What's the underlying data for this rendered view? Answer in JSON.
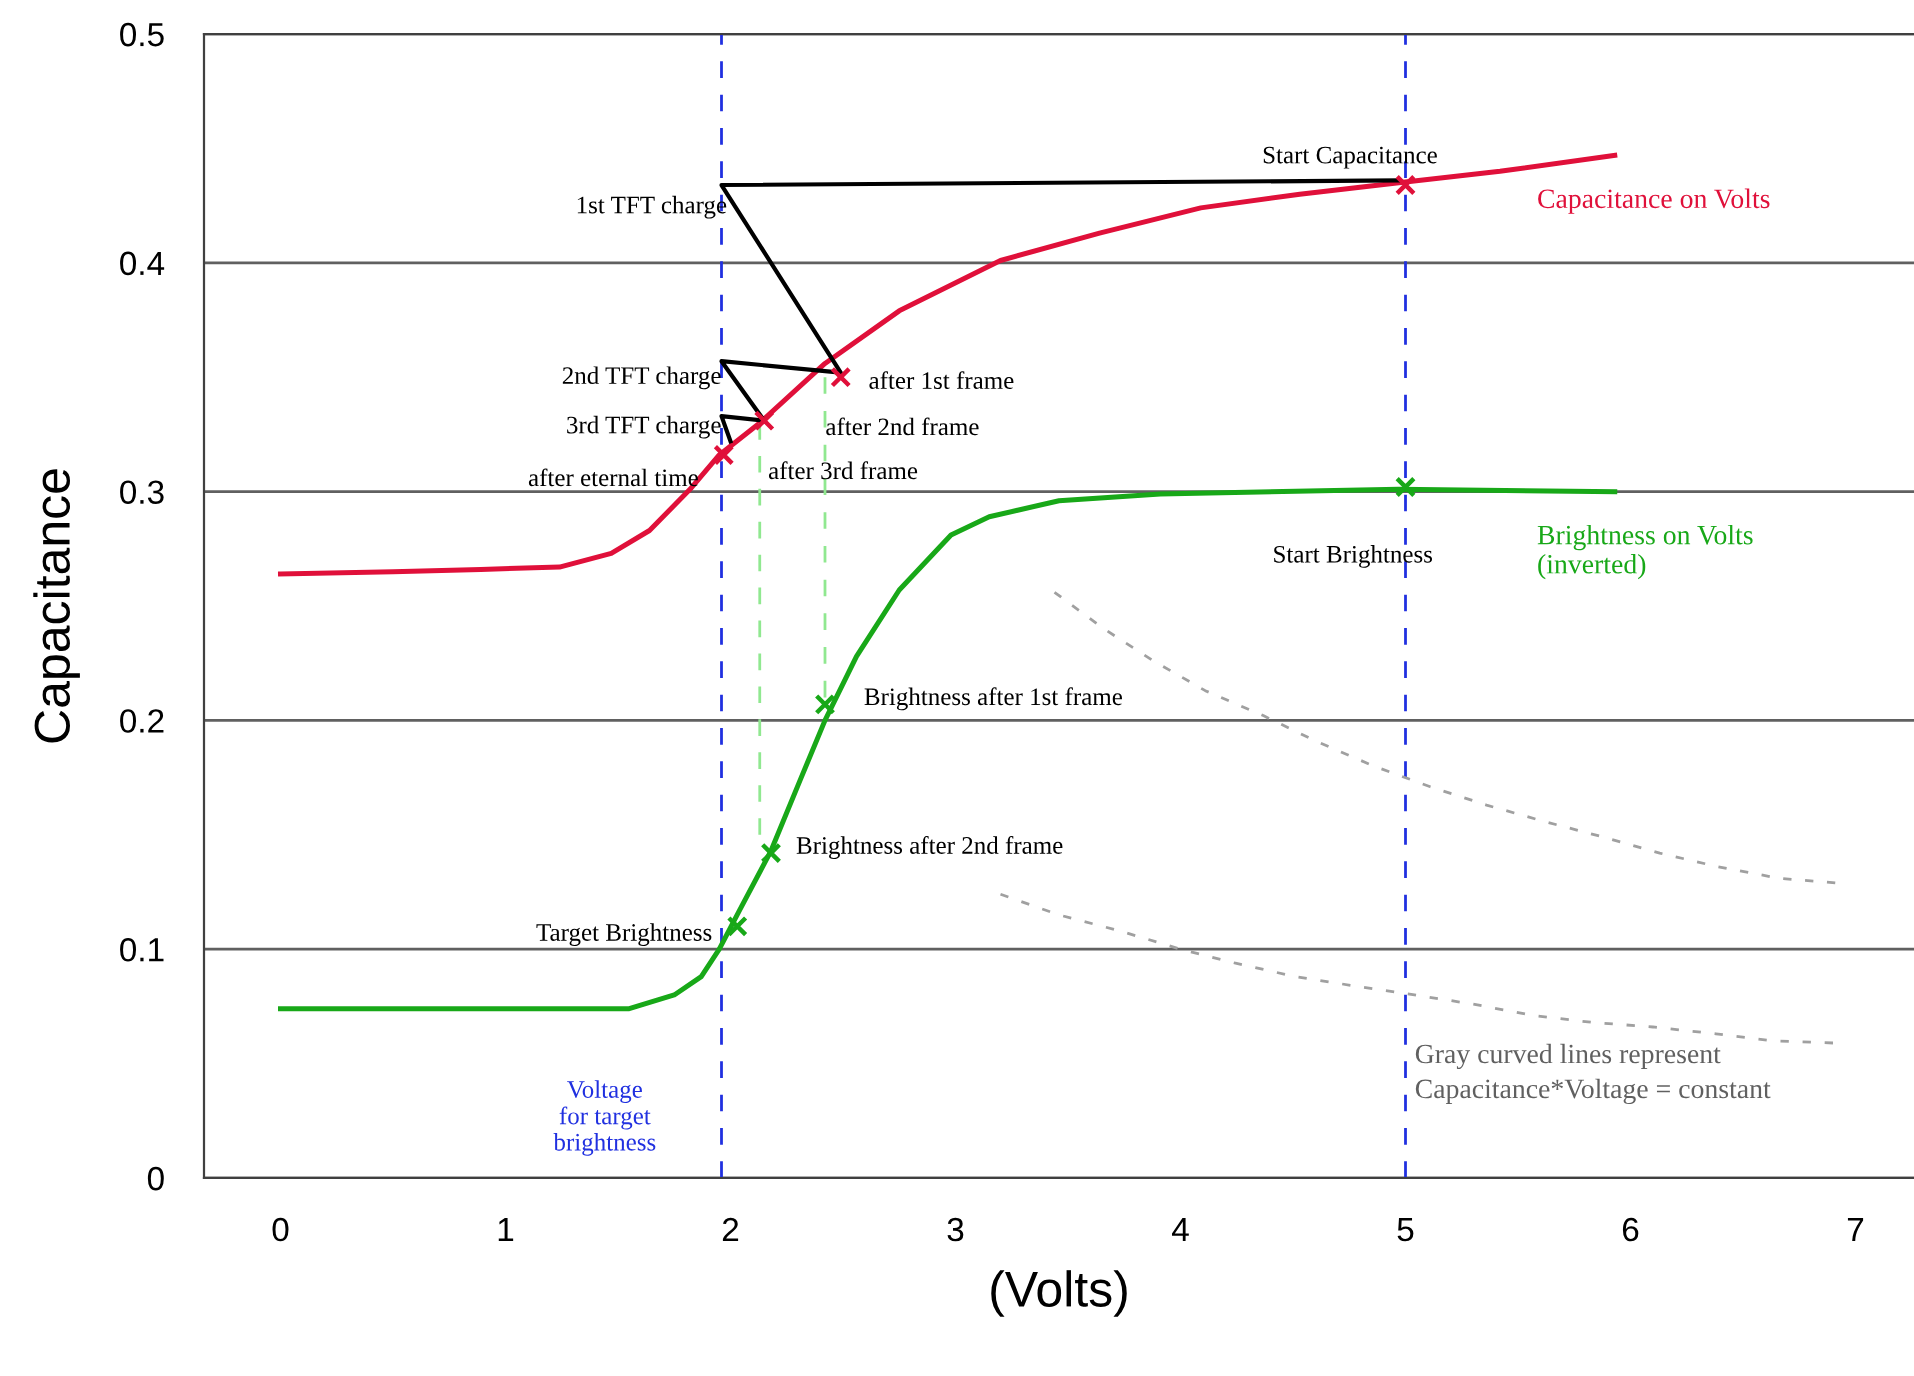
{
  "chart_data": {
    "type": "line",
    "xlabel": "(Volts)",
    "ylabel": "Capacitance",
    "xlim": [
      -0.34,
      7.26
    ],
    "ylim": [
      0,
      0.5
    ],
    "xticks": [
      0,
      1,
      2,
      3,
      4,
      5,
      6,
      7
    ],
    "yticks": [
      0,
      0.1,
      0.2,
      0.3,
      0.4,
      0.5
    ],
    "grid": "y",
    "series": [
      {
        "name": "Capacitance on Volts",
        "color": "#e0103a",
        "x": [
          0,
          0.5,
          0.89,
          1.24,
          1.47,
          1.64,
          1.82,
          1.95,
          2.13,
          2.42,
          2.75,
          3.2,
          3.64,
          4.09,
          4.53,
          4.97,
          5.42,
          5.93
        ],
        "values": [
          0.264,
          0.265,
          0.266,
          0.267,
          0.273,
          0.283,
          0.301,
          0.316,
          0.33,
          0.356,
          0.379,
          0.401,
          0.413,
          0.424,
          0.43,
          0.435,
          0.44,
          0.447
        ]
      },
      {
        "name": "Brightness on Volts\n(inverted)",
        "color": "#18a818",
        "x": [
          0,
          1.55,
          1.75,
          1.87,
          1.95,
          2.04,
          2.18,
          2.31,
          2.42,
          2.56,
          2.75,
          2.98,
          3.15,
          3.46,
          3.91,
          4.97,
          5.93
        ],
        "values": [
          0.074,
          0.074,
          0.08,
          0.088,
          0.1,
          0.117,
          0.143,
          0.174,
          0.2,
          0.228,
          0.257,
          0.281,
          0.289,
          0.296,
          0.299,
          0.301,
          0.3
        ]
      },
      {
        "type": "scatter",
        "marker": "cross",
        "color": "#e0103a",
        "x": [
          5.0,
          2.49,
          2.15,
          1.97
        ],
        "values": [
          0.434,
          0.35,
          0.331,
          0.316
        ]
      },
      {
        "type": "scatter",
        "marker": "cross",
        "color": "#18a818",
        "x": [
          5.0,
          2.42,
          2.18,
          2.03
        ],
        "values": [
          0.302,
          0.207,
          0.142,
          0.11
        ]
      },
      {
        "color": "#000000",
        "x": [
          4.97,
          1.96,
          2.49,
          1.96,
          2.15,
          1.96,
          2.0
        ],
        "values": [
          0.436,
          0.434,
          0.352,
          0.357,
          0.331,
          0.333,
          0.322
        ]
      },
      {
        "line_style": "dashed",
        "color": "#90e890",
        "x": [
          2.13,
          2.13
        ],
        "values": [
          0.33,
          0.15
        ]
      },
      {
        "line_style": "dashed",
        "color": "#90e890",
        "x": [
          2.42,
          2.42
        ],
        "values": [
          0.35,
          0.21
        ]
      },
      {
        "line_style": "dotted",
        "color": "#a0a0a0",
        "x": [
          3.2,
          3.46,
          3.73,
          4.0,
          4.24,
          4.51,
          4.77,
          5.04,
          5.3,
          5.57,
          5.83,
          6.1,
          6.38,
          6.63,
          6.9
        ],
        "values": [
          0.124,
          0.115,
          0.108,
          0.1,
          0.094,
          0.088,
          0.084,
          0.08,
          0.076,
          0.071,
          0.068,
          0.066,
          0.063,
          0.06,
          0.059
        ]
      },
      {
        "line_style": "dotted",
        "color": "#a0a0a0",
        "x": [
          3.44,
          3.66,
          3.88,
          4.11,
          4.37,
          4.6,
          4.86,
          5.11,
          5.36,
          5.61,
          5.88,
          6.13,
          6.39,
          6.66,
          6.91
        ],
        "values": [
          0.256,
          0.24,
          0.226,
          0.213,
          0.202,
          0.191,
          0.18,
          0.171,
          0.163,
          0.156,
          0.149,
          0.142,
          0.136,
          0.131,
          0.129
        ]
      }
    ],
    "ref_lines": [
      {
        "axis": "x",
        "value": 1.96,
        "label": "Voltage\nfor target\nbrightness",
        "color": "#2030e0",
        "line_style": "dashed"
      },
      {
        "axis": "x",
        "value": 5.0,
        "color": "#2030e0",
        "line_style": "dashed"
      }
    ],
    "annotations": [
      {
        "text": "Start Capacitance",
        "x": 5.0,
        "y": 0.434
      },
      {
        "text": "1st TFT charge",
        "x": 1.96,
        "y": 0.434
      },
      {
        "text": "2nd TFT charge",
        "x": 1.96,
        "y": 0.357
      },
      {
        "text": "3rd TFT charge",
        "x": 1.96,
        "y": 0.333
      },
      {
        "text": "after eternal time",
        "x": 1.97,
        "y": 0.316
      },
      {
        "text": "after 1st frame",
        "x": 2.49,
        "y": 0.35
      },
      {
        "text": "after 2nd frame",
        "x": 2.15,
        "y": 0.331
      },
      {
        "text": "after 3rd frame",
        "x": 2.13,
        "y": 0.33
      },
      {
        "text": "Start Brightness",
        "x": 5.0,
        "y": 0.302
      },
      {
        "text": "Brightness after 1st frame",
        "x": 2.42,
        "y": 0.207
      },
      {
        "text": "Brightness after 2nd frame",
        "x": 2.18,
        "y": 0.142
      },
      {
        "text": "Target Brightness",
        "x": 2.03,
        "y": 0.11
      },
      "Gray curved lines represent\nCapacitance*Voltage = constant"
    ]
  }
}
